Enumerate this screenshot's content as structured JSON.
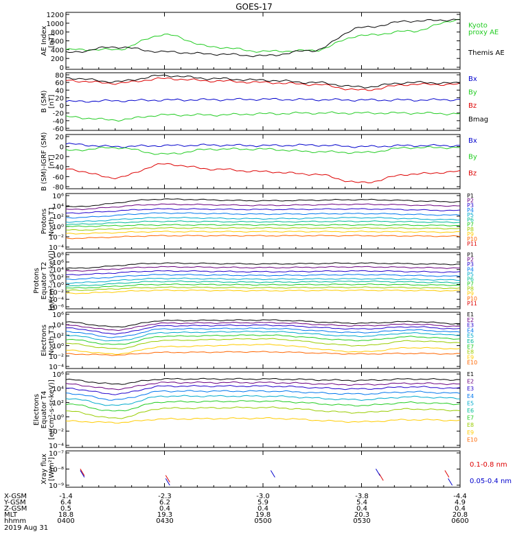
{
  "title": "GOES-17",
  "colors": {
    "black": "#000000",
    "blue": "#0000cc",
    "green": "#22cc22",
    "red": "#dd0000",
    "p1": "#000000",
    "p2": "#6a0080",
    "p3": "#2200cc",
    "p4": "#0077ee",
    "p5": "#00aacc",
    "p6": "#00bb99",
    "p7": "#22cc22",
    "p8": "#99cc00",
    "p9": "#ffcc00",
    "p10": "#ff6600",
    "p11": "#dd0000"
  },
  "panels": [
    {
      "id": "ae",
      "ylabel": [
        "AE Index",
        "[nT]"
      ],
      "ticks": [
        "1200",
        "1000",
        "800",
        "600",
        "400",
        "200",
        "0"
      ],
      "legend": [
        {
          "text": "Kyoto",
          "color": "#22cc22"
        },
        {
          "text": "proxy AE",
          "color": "#22cc22"
        },
        {
          "text": "Themis AE",
          "color": "#000000"
        }
      ]
    },
    {
      "id": "bsm",
      "ylabel": [
        "B (SM)",
        "[nT]"
      ],
      "ticks": [
        "80",
        "60",
        "40",
        "20",
        "0",
        "-20",
        "-40",
        "-60"
      ],
      "legend": [
        {
          "text": "Bx",
          "color": "#0000cc"
        },
        {
          "text": "By",
          "color": "#22cc22"
        },
        {
          "text": "Bz",
          "color": "#dd0000"
        },
        {
          "text": "Bmag",
          "color": "#000000"
        }
      ]
    },
    {
      "id": "bigrf",
      "ylabel": [
        "B (SM)-IGRF (SM)",
        "[nT]"
      ],
      "ticks": [
        "20",
        "0",
        "-20",
        "-40",
        "-60",
        "-80"
      ],
      "legend": [
        {
          "text": "Bx",
          "color": "#0000cc"
        },
        {
          "text": "By",
          "color": "#22cc22"
        },
        {
          "text": "Bz",
          "color": "#dd0000"
        }
      ]
    },
    {
      "id": "pt1",
      "ylabel": [
        "Protons",
        "North T1"
      ],
      "ticks": [
        "10⁶",
        "10⁴",
        "10²",
        "10⁰",
        "10⁻²",
        "10⁻⁴"
      ],
      "legend": [
        "P1",
        "P2",
        "P3",
        "P4",
        "P5",
        "P6",
        "P7",
        "P8",
        "P9",
        "P10",
        "P11"
      ]
    },
    {
      "id": "pt2",
      "ylabel": [
        "Protons",
        "Equator T2",
        "[p/(cm²-s-sr-keV)]"
      ],
      "ticks": [
        "10⁸",
        "10⁶",
        "10⁴",
        "10²",
        "10⁰",
        "10⁻²",
        "10⁻⁴",
        "10⁻⁶"
      ],
      "legend": [
        "P1",
        "P2",
        "P3",
        "P4",
        "P5",
        "P6",
        "P7",
        "P8",
        "P9",
        "P10",
        "P11"
      ]
    },
    {
      "id": "et3",
      "ylabel": [
        "Electrons",
        "North T3"
      ],
      "ticks": [
        "10⁶",
        "10⁴",
        "10²",
        "10⁰",
        "10⁻²",
        "10⁻⁴"
      ],
      "legend": [
        "E1",
        "E2",
        "E3",
        "E4",
        "E5",
        "E6",
        "E7",
        "E8",
        "E9",
        "E10"
      ]
    },
    {
      "id": "et4",
      "ylabel": [
        "Electrons",
        "Equator T4",
        "[e/(cm²-s-sr-keV)]"
      ],
      "ticks": [
        "10⁶",
        "10⁴",
        "10²",
        "10⁰",
        "10⁻²",
        "10⁻⁴"
      ],
      "legend": [
        "E1",
        "E2",
        "E3",
        "E4",
        "E5",
        "E6",
        "E7",
        "E8",
        "E9",
        "E10"
      ]
    },
    {
      "id": "xray",
      "ylabel": [
        "Xray flux",
        "[W/m²]"
      ],
      "ticks": [
        "10⁻⁷",
        "10⁻⁸",
        "10⁻⁹"
      ],
      "legend": [
        {
          "text": "0.1-0.8 nm",
          "color": "#dd0000"
        },
        {
          "text": "0.05-0.4 nm",
          "color": "#0000cc"
        }
      ]
    }
  ],
  "footer": {
    "row_labels": [
      "X-GSM",
      "Y-GSM",
      "Z-GSM",
      "MLT",
      "hhmm",
      "2019 Aug 31"
    ],
    "columns": [
      {
        "x": "-1.4",
        "y": "6.4",
        "z": "0.5",
        "mlt": "18.8",
        "hhmm": "0400"
      },
      {
        "x": "-2.3",
        "y": "6.2",
        "z": "0.4",
        "mlt": "19.3",
        "hhmm": "0430"
      },
      {
        "x": "-3.0",
        "y": "5.9",
        "z": "0.4",
        "mlt": "19.8",
        "hhmm": "0500"
      },
      {
        "x": "-3.8",
        "y": "5.4",
        "z": "0.4",
        "mlt": "20.3",
        "hhmm": "0530"
      },
      {
        "x": "-4.4",
        "y": "4.9",
        "z": "0.4",
        "mlt": "20.8",
        "hhmm": "0600"
      }
    ]
  },
  "chart_data": [
    {
      "type": "line",
      "panel": "AE Index",
      "x": [
        "0400",
        "0415",
        "0430",
        "0445",
        "0500",
        "0515",
        "0530",
        "0545",
        "0600"
      ],
      "ylim": [
        0,
        1200
      ],
      "series": [
        {
          "name": "Kyoto proxy AE",
          "values": [
            400,
            400,
            740,
            460,
            360,
            380,
            720,
            820,
            1080
          ]
        },
        {
          "name": "Themis AE",
          "values": [
            330,
            460,
            350,
            300,
            260,
            380,
            900,
            1050,
            1080
          ]
        }
      ]
    },
    {
      "type": "line",
      "panel": "B (SM) [nT]",
      "x": [
        "0400",
        "0415",
        "0430",
        "0445",
        "0500",
        "0515",
        "0530",
        "0545",
        "0600"
      ],
      "ylim": [
        -60,
        80
      ],
      "series": [
        {
          "name": "Bx",
          "values": [
            10,
            12,
            14,
            15,
            16,
            15,
            14,
            14,
            15
          ]
        },
        {
          "name": "By",
          "values": [
            -30,
            -38,
            -25,
            -25,
            -22,
            -20,
            -20,
            -20,
            -22
          ]
        },
        {
          "name": "Bz",
          "values": [
            65,
            58,
            70,
            64,
            60,
            55,
            40,
            55,
            55
          ]
        },
        {
          "name": "Bmag",
          "values": [
            72,
            62,
            78,
            70,
            66,
            60,
            48,
            60,
            58
          ]
        }
      ]
    },
    {
      "type": "line",
      "panel": "B (SM)-IGRF (SM) [nT]",
      "x": [
        "0400",
        "0415",
        "0430",
        "0445",
        "0500",
        "0515",
        "0530",
        "0545",
        "0600"
      ],
      "ylim": [
        -80,
        20
      ],
      "series": [
        {
          "name": "Bx",
          "values": [
            5,
            0,
            2,
            3,
            2,
            3,
            0,
            2,
            2
          ]
        },
        {
          "name": "By",
          "values": [
            -8,
            -2,
            -15,
            -5,
            -5,
            -10,
            -12,
            -2,
            -2
          ]
        },
        {
          "name": "Bz",
          "values": [
            -45,
            -62,
            -35,
            -45,
            -50,
            -55,
            -72,
            -55,
            -50
          ]
        }
      ]
    },
    {
      "type": "line",
      "panel": "Protons North T1 (log10 flux)",
      "x": [
        "0400",
        "0430",
        "0500",
        "0530",
        "0600"
      ],
      "ylim": [
        -4,
        6
      ],
      "series": [
        {
          "name": "P1",
          "values": [
            3.8,
            5.3,
            5.0,
            5.2,
            4.8
          ]
        },
        {
          "name": "P2",
          "values": [
            3.3,
            4.3,
            4.1,
            4.3,
            4.0
          ]
        },
        {
          "name": "P3",
          "values": [
            2.6,
            3.4,
            3.3,
            3.4,
            3.1
          ]
        },
        {
          "name": "P4",
          "values": [
            1.7,
            2.6,
            2.4,
            2.5,
            2.2
          ]
        },
        {
          "name": "P5",
          "values": [
            0.9,
            1.7,
            1.5,
            1.7,
            1.3
          ]
        },
        {
          "name": "P6",
          "values": [
            0.4,
            1.0,
            0.9,
            1.0,
            0.8
          ]
        },
        {
          "name": "P7",
          "values": [
            0.0,
            0.3,
            0.3,
            0.3,
            0.2
          ]
        },
        {
          "name": "P8",
          "values": [
            -0.7,
            -0.3,
            -0.3,
            -0.3,
            -0.4
          ]
        },
        {
          "name": "P9",
          "values": [
            -1.4,
            -1.0,
            -1.0,
            -1.0,
            -1.1
          ]
        },
        {
          "name": "P10",
          "values": [
            -2.3,
            -1.8,
            -1.8,
            -1.8,
            -1.9
          ]
        }
      ]
    },
    {
      "type": "line",
      "panel": "Protons Equator T2 (log10 flux)",
      "x": [
        "0400",
        "0430",
        "0500",
        "0530",
        "0600"
      ],
      "ylim": [
        -6,
        8
      ],
      "series": [
        {
          "name": "P1",
          "values": [
            4.3,
            5.7,
            5.5,
            5.7,
            5.4
          ]
        },
        {
          "name": "P2",
          "values": [
            3.6,
            4.7,
            4.5,
            4.7,
            4.4
          ]
        },
        {
          "name": "P3",
          "values": [
            2.6,
            3.6,
            3.4,
            3.6,
            3.3
          ]
        },
        {
          "name": "P4",
          "values": [
            1.4,
            2.6,
            2.4,
            2.6,
            2.2
          ]
        },
        {
          "name": "P5",
          "values": [
            0.4,
            1.6,
            1.4,
            1.5,
            1.2
          ]
        },
        {
          "name": "P6",
          "values": [
            -0.4,
            0.8,
            0.6,
            0.8,
            0.5
          ]
        },
        {
          "name": "P7",
          "values": [
            -1.0,
            0.0,
            -0.1,
            0.0,
            -0.2
          ]
        },
        {
          "name": "P8",
          "values": [
            -1.6,
            -0.8,
            -0.9,
            -0.8,
            -1.0
          ]
        },
        {
          "name": "P9",
          "values": [
            -2.4,
            -1.6,
            -1.7,
            -1.6,
            -1.7
          ]
        }
      ]
    },
    {
      "type": "line",
      "panel": "Electrons North T3 (log10 flux)",
      "x": [
        "0400",
        "0415",
        "0430",
        "0500",
        "0530",
        "0545",
        "0600"
      ],
      "ylim": [
        -4,
        6
      ],
      "series": [
        {
          "name": "E1",
          "values": [
            4.5,
            3.6,
            4.8,
            4.9,
            4.3,
            4.6,
            4.2
          ]
        },
        {
          "name": "E2",
          "values": [
            3.9,
            3.0,
            4.3,
            4.4,
            3.8,
            4.1,
            3.7
          ]
        },
        {
          "name": "E3",
          "values": [
            3.4,
            2.3,
            3.8,
            3.9,
            3.2,
            3.6,
            3.2
          ]
        },
        {
          "name": "E4",
          "values": [
            2.7,
            1.6,
            3.2,
            3.3,
            2.5,
            3.0,
            2.6
          ]
        },
        {
          "name": "E5",
          "values": [
            2.0,
            0.9,
            2.5,
            2.7,
            1.8,
            2.4,
            2.0
          ]
        },
        {
          "name": "E6",
          "values": [
            1.2,
            0.2,
            1.8,
            2.0,
            1.0,
            1.7,
            1.3
          ]
        },
        {
          "name": "E7",
          "values": [
            0.4,
            -0.6,
            1.0,
            1.3,
            0.0,
            0.9,
            0.6
          ]
        },
        {
          "name": "E8",
          "values": [
            -0.9,
            -1.6,
            -0.2,
            0.2,
            -1.2,
            -0.4,
            -0.6
          ]
        },
        {
          "name": "E9",
          "values": [
            -1.6,
            -1.8,
            -1.3,
            -1.2,
            -1.6,
            -1.5,
            -1.6
          ]
        }
      ]
    },
    {
      "type": "line",
      "panel": "Electrons Equator T4 (log10 flux)",
      "x": [
        "0400",
        "0415",
        "0430",
        "0500",
        "0530",
        "0545",
        "0600"
      ],
      "ylim": [
        -4,
        6
      ],
      "series": [
        {
          "name": "E1",
          "values": [
            5.2,
            4.6,
            5.3,
            5.3,
            5.1,
            5.3,
            5.2
          ]
        },
        {
          "name": "E2",
          "values": [
            4.6,
            3.9,
            4.8,
            4.8,
            4.5,
            4.7,
            4.6
          ]
        },
        {
          "name": "E3",
          "values": [
            4.0,
            3.2,
            4.3,
            4.3,
            3.9,
            4.2,
            4.0
          ]
        },
        {
          "name": "E4",
          "values": [
            3.3,
            2.4,
            3.6,
            3.6,
            3.2,
            3.5,
            3.3
          ]
        },
        {
          "name": "E5",
          "values": [
            2.6,
            1.6,
            2.9,
            2.9,
            2.4,
            2.8,
            2.6
          ]
        },
        {
          "name": "E6",
          "values": [
            1.8,
            0.8,
            2.1,
            2.2,
            1.6,
            2.0,
            1.8
          ]
        },
        {
          "name": "E7",
          "values": [
            0.8,
            -0.2,
            1.2,
            1.3,
            0.6,
            1.1,
            0.9
          ]
        },
        {
          "name": "E8",
          "values": [
            -0.6,
            -0.8,
            -0.3,
            -0.2,
            -0.7,
            -0.4,
            -0.5
          ]
        }
      ]
    },
    {
      "type": "scatter",
      "panel": "Xray flux [W/m²] (log10)",
      "ylim": [
        -9,
        -7
      ],
      "series": [
        {
          "name": "0.1-0.8 nm",
          "points": [
            [
              "0405",
              -8.2
            ],
            [
              "0431",
              -8.6
            ],
            [
              "0536",
              -8.5
            ],
            [
              "0556",
              -8.3
            ]
          ]
        },
        {
          "name": "0.05-0.4 nm",
          "points": [
            [
              "0405",
              -8.3
            ],
            [
              "0431",
              -8.8
            ],
            [
              "0503",
              -8.3
            ],
            [
              "0535",
              -8.2
            ],
            [
              "0557",
              -8.8
            ]
          ]
        }
      ]
    }
  ]
}
